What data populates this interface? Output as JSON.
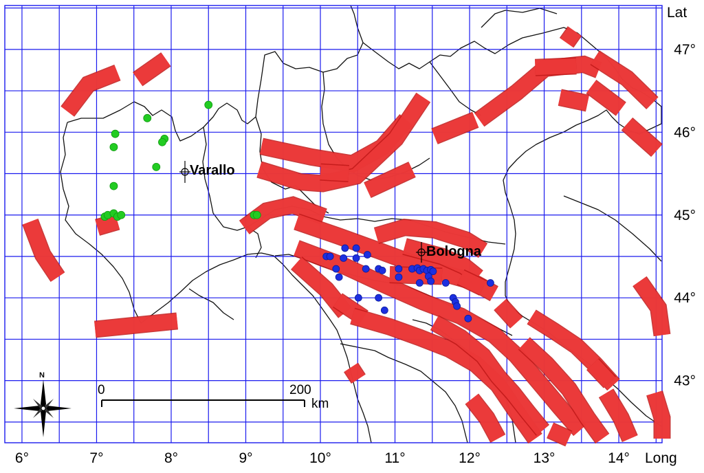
{
  "map": {
    "lat_title": "Lat",
    "long_title": "Long",
    "lon_ticks": [
      "6°",
      "7°",
      "8°",
      "9°",
      "10°",
      "11°",
      "12°",
      "13°",
      "14°"
    ],
    "lat_ticks": [
      "47°",
      "46°",
      "45°",
      "44°",
      "43°"
    ],
    "lon_range": [
      5.74,
      14.55
    ],
    "lat_range": [
      42.25,
      47.53
    ],
    "gridline_lon": [
      5.97,
      6.47,
      6.97,
      7.47,
      7.97,
      8.47,
      8.97,
      9.47,
      9.97,
      10.47,
      10.97,
      11.47,
      11.97,
      12.47,
      12.97,
      13.47,
      13.97,
      14.47
    ],
    "gridline_lat": [
      42.5,
      43.0,
      43.5,
      44.0,
      44.5,
      45.0,
      45.5,
      46.0,
      46.5,
      47.0,
      47.5
    ],
    "colors": {
      "grid": "#1a1aee",
      "boundary": "#111111",
      "fault": "#ee3b3b",
      "fault_stroke": "#c01818",
      "green_point": "#22cc22",
      "blue_point": "#1c2fe0"
    }
  },
  "cities": [
    {
      "name": "Varallo",
      "lon": 8.15,
      "lat": 45.48
    },
    {
      "name": "Bologna",
      "lon": 11.35,
      "lat": 44.52
    }
  ],
  "scale_bar": {
    "start_label": "0",
    "end_label": "200",
    "unit": "km"
  },
  "compass": {
    "label": "N",
    "icon": "compass-rose-icon"
  },
  "green_points": [
    {
      "lon": 8.47,
      "lat": 46.33
    },
    {
      "lon": 7.65,
      "lat": 46.17
    },
    {
      "lon": 7.22,
      "lat": 45.98
    },
    {
      "lon": 7.2,
      "lat": 45.82
    },
    {
      "lon": 7.88,
      "lat": 45.92
    },
    {
      "lon": 7.85,
      "lat": 45.88
    },
    {
      "lon": 7.77,
      "lat": 45.58
    },
    {
      "lon": 7.2,
      "lat": 45.35
    },
    {
      "lon": 7.08,
      "lat": 44.98
    },
    {
      "lon": 7.12,
      "lat": 45.0
    },
    {
      "lon": 7.2,
      "lat": 45.02
    },
    {
      "lon": 7.25,
      "lat": 44.98
    },
    {
      "lon": 7.3,
      "lat": 45.0
    },
    {
      "lon": 9.08,
      "lat": 45.0
    },
    {
      "lon": 9.12,
      "lat": 45.0
    }
  ],
  "blue_points": [
    {
      "lon": 10.05,
      "lat": 44.5
    },
    {
      "lon": 10.1,
      "lat": 44.5
    },
    {
      "lon": 10.3,
      "lat": 44.6
    },
    {
      "lon": 10.45,
      "lat": 44.6
    },
    {
      "lon": 10.28,
      "lat": 44.48
    },
    {
      "lon": 10.45,
      "lat": 44.48
    },
    {
      "lon": 10.6,
      "lat": 44.52
    },
    {
      "lon": 10.18,
      "lat": 44.35
    },
    {
      "lon": 10.22,
      "lat": 44.25
    },
    {
      "lon": 10.58,
      "lat": 44.35
    },
    {
      "lon": 10.75,
      "lat": 44.35
    },
    {
      "lon": 10.8,
      "lat": 44.33
    },
    {
      "lon": 11.02,
      "lat": 44.35
    },
    {
      "lon": 11.02,
      "lat": 44.25
    },
    {
      "lon": 11.2,
      "lat": 44.35
    },
    {
      "lon": 11.27,
      "lat": 44.36
    },
    {
      "lon": 11.3,
      "lat": 44.33
    },
    {
      "lon": 11.35,
      "lat": 44.35
    },
    {
      "lon": 11.4,
      "lat": 44.33
    },
    {
      "lon": 11.45,
      "lat": 44.34
    },
    {
      "lon": 11.48,
      "lat": 44.32
    },
    {
      "lon": 11.42,
      "lat": 44.26
    },
    {
      "lon": 11.45,
      "lat": 44.2
    },
    {
      "lon": 11.3,
      "lat": 44.18
    },
    {
      "lon": 11.65,
      "lat": 44.18
    },
    {
      "lon": 10.48,
      "lat": 44.0
    },
    {
      "lon": 10.75,
      "lat": 44.0
    },
    {
      "lon": 10.83,
      "lat": 43.85
    },
    {
      "lon": 11.75,
      "lat": 44.0
    },
    {
      "lon": 11.78,
      "lat": 43.95
    },
    {
      "lon": 11.8,
      "lat": 43.9
    },
    {
      "lon": 11.95,
      "lat": 43.75
    },
    {
      "lon": 12.25,
      "lat": 44.18
    }
  ],
  "fault_zones": [
    [
      [
        6.58,
        46.25
      ],
      [
        6.86,
        46.58
      ],
      [
        7.25,
        46.72
      ]
    ],
    [
      [
        7.52,
        46.64
      ],
      [
        7.9,
        46.88
      ]
    ],
    [
      [
        6.08,
        44.92
      ],
      [
        6.25,
        44.52
      ],
      [
        6.45,
        44.25
      ]
    ],
    [
      [
        6.98,
        44.85
      ],
      [
        7.25,
        44.92
      ]
    ],
    [
      [
        6.95,
        43.62
      ],
      [
        8.05,
        43.72
      ]
    ],
    [
      [
        8.95,
        44.85
      ],
      [
        9.25,
        45.05
      ],
      [
        9.6,
        45.12
      ],
      [
        10.02,
        44.98
      ]
    ],
    [
      [
        9.18,
        45.83
      ],
      [
        9.85,
        45.7
      ],
      [
        10.4,
        45.62
      ],
      [
        10.8,
        45.82
      ],
      [
        11.12,
        46.15
      ]
    ],
    [
      [
        9.15,
        45.55
      ],
      [
        9.7,
        45.4
      ],
      [
        10.0,
        45.38
      ],
      [
        10.45,
        45.47
      ],
      [
        10.98,
        45.92
      ],
      [
        11.35,
        46.42
      ]
    ],
    [
      [
        9.97,
        45.52
      ],
      [
        10.35,
        45.5
      ]
    ],
    [
      [
        10.6,
        45.3
      ],
      [
        11.2,
        45.55
      ]
    ],
    [
      [
        11.5,
        45.95
      ],
      [
        12.05,
        46.15
      ]
    ],
    [
      [
        12.1,
        46.15
      ],
      [
        12.6,
        46.48
      ],
      [
        12.98,
        46.77
      ],
      [
        13.5,
        46.82
      ],
      [
        13.7,
        46.75
      ]
    ],
    [
      [
        12.85,
        46.78
      ],
      [
        13.4,
        46.8
      ]
    ],
    [
      [
        13.18,
        46.42
      ],
      [
        13.55,
        46.35
      ]
    ],
    [
      [
        13.65,
        46.9
      ],
      [
        14.08,
        46.65
      ],
      [
        14.42,
        46.35
      ]
    ],
    [
      [
        13.6,
        46.55
      ],
      [
        14.0,
        46.28
      ]
    ],
    [
      [
        14.08,
        46.1
      ],
      [
        14.48,
        45.78
      ]
    ],
    [
      [
        13.27,
        47.08
      ],
      [
        13.38,
        47.22
      ]
    ],
    [
      [
        9.65,
        44.92
      ],
      [
        10.2,
        44.75
      ],
      [
        10.75,
        44.57
      ],
      [
        11.2,
        44.42
      ],
      [
        11.6,
        44.3
      ],
      [
        12.0,
        44.2
      ],
      [
        12.3,
        44.05
      ]
    ],
    [
      [
        9.65,
        44.6
      ],
      [
        10.3,
        44.38
      ],
      [
        10.85,
        44.15
      ],
      [
        11.35,
        43.95
      ],
      [
        11.85,
        43.78
      ],
      [
        12.3,
        43.55
      ],
      [
        12.6,
        43.3
      ],
      [
        12.9,
        42.98
      ],
      [
        13.18,
        42.68
      ],
      [
        13.45,
        42.4
      ]
    ],
    [
      [
        9.65,
        44.42
      ],
      [
        10.05,
        44.1
      ],
      [
        10.3,
        43.82
      ]
    ],
    [
      [
        10.2,
        43.97
      ],
      [
        10.55,
        43.76
      ]
    ],
    [
      [
        10.72,
        44.75
      ],
      [
        11.1,
        44.85
      ],
      [
        11.5,
        44.82
      ],
      [
        11.92,
        44.7
      ],
      [
        12.15,
        44.57
      ]
    ],
    [
      [
        11.1,
        44.62
      ],
      [
        11.6,
        44.5
      ],
      [
        11.9,
        44.38
      ],
      [
        12.08,
        44.25
      ]
    ],
    [
      [
        10.9,
        44.28
      ],
      [
        11.6,
        44.26
      ]
    ],
    [
      [
        11.85,
        44.25
      ],
      [
        12.15,
        44.12
      ]
    ],
    [
      [
        10.4,
        43.78
      ],
      [
        10.9,
        43.65
      ],
      [
        11.3,
        43.52
      ],
      [
        11.7,
        43.38
      ],
      [
        12.05,
        43.2
      ],
      [
        12.35,
        42.95
      ],
      [
        12.6,
        42.62
      ],
      [
        12.85,
        42.3
      ]
    ],
    [
      [
        11.5,
        43.7
      ],
      [
        11.85,
        43.52
      ],
      [
        12.15,
        43.3
      ],
      [
        12.35,
        43.05
      ],
      [
        12.55,
        42.85
      ],
      [
        12.75,
        42.62
      ],
      [
        12.95,
        42.4
      ]
    ],
    [
      [
        12.38,
        43.92
      ],
      [
        12.6,
        43.7
      ]
    ],
    [
      [
        12.8,
        43.77
      ],
      [
        13.1,
        43.6
      ],
      [
        13.4,
        43.42
      ],
      [
        13.65,
        43.2
      ],
      [
        13.9,
        42.95
      ]
    ],
    [
      [
        12.7,
        43.45
      ],
      [
        13.0,
        43.2
      ],
      [
        13.3,
        42.9
      ],
      [
        13.55,
        42.55
      ],
      [
        13.75,
        42.3
      ]
    ],
    [
      [
        13.62,
        43.2
      ],
      [
        13.85,
        42.98
      ]
    ],
    [
      [
        13.8,
        42.85
      ],
      [
        14.0,
        42.55
      ],
      [
        14.12,
        42.3
      ]
    ],
    [
      [
        14.45,
        42.85
      ],
      [
        14.55,
        42.55
      ],
      [
        14.55,
        42.3
      ]
    ],
    [
      [
        14.25,
        44.2
      ],
      [
        14.5,
        43.88
      ],
      [
        14.55,
        43.55
      ]
    ],
    [
      [
        10.38,
        43.16
      ],
      [
        10.48,
        43.02
      ]
    ],
    [
      [
        12.0,
        42.78
      ],
      [
        12.2,
        42.55
      ],
      [
        12.35,
        42.3
      ]
    ],
    [
      [
        13.05,
        42.4
      ],
      [
        13.3,
        42.3
      ]
    ]
  ]
}
